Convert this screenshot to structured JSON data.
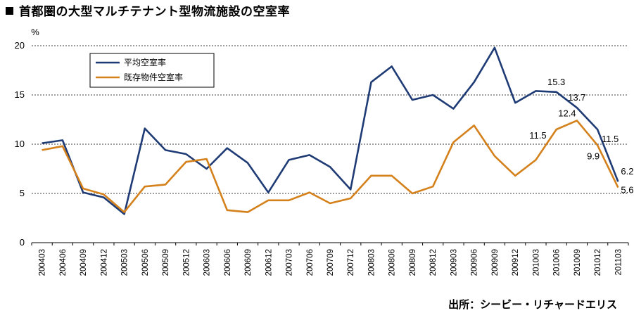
{
  "title": "首都圏の大型マルチテナント型物流施設の空室率",
  "source": "出所：シービー・リチャードエリス",
  "chart_data": {
    "type": "line",
    "ylabel": "%",
    "ylim": [
      0,
      20
    ],
    "yticks": [
      0,
      5,
      10,
      15,
      20
    ],
    "grid": true,
    "legend_position": "top-left",
    "categories": [
      "200403",
      "200406",
      "200409",
      "200412",
      "200503",
      "200506",
      "200509",
      "200512",
      "200603",
      "200606",
      "200609",
      "200612",
      "200703",
      "200706",
      "200709",
      "200712",
      "200803",
      "200806",
      "200809",
      "200812",
      "200903",
      "200906",
      "200909",
      "200912",
      "201003",
      "201006",
      "201009",
      "201012",
      "201103"
    ],
    "series": [
      {
        "name": "平均空室率",
        "color": "#1f3b75",
        "values": [
          10.1,
          10.4,
          5.1,
          4.6,
          2.9,
          11.6,
          9.4,
          9.0,
          7.5,
          9.6,
          8.1,
          5.1,
          8.4,
          8.9,
          7.7,
          5.4,
          16.3,
          17.9,
          14.5,
          15.0,
          13.6,
          16.3,
          19.8,
          14.2,
          15.4,
          15.3,
          13.7,
          11.5,
          6.2
        ]
      },
      {
        "name": "既存物件空室率",
        "color": "#d4811c",
        "values": [
          9.4,
          9.8,
          5.5,
          4.9,
          3.1,
          5.7,
          5.9,
          8.2,
          8.5,
          3.3,
          3.1,
          4.3,
          4.3,
          5.1,
          4.0,
          4.5,
          6.8,
          6.8,
          5.0,
          5.7,
          10.2,
          11.9,
          8.8,
          6.8,
          8.4,
          11.5,
          12.4,
          9.9,
          5.6
        ]
      }
    ],
    "data_labels": [
      {
        "series": 0,
        "index": 25,
        "text": "15.3"
      },
      {
        "series": 0,
        "index": 26,
        "text": "13.7"
      },
      {
        "series": 0,
        "index": 27,
        "text": "11.5"
      },
      {
        "series": 0,
        "index": 28,
        "text": "6.2"
      },
      {
        "series": 1,
        "index": 25,
        "text": "11.5"
      },
      {
        "series": 1,
        "index": 26,
        "text": "12.4"
      },
      {
        "series": 1,
        "index": 27,
        "text": "9.9"
      },
      {
        "series": 1,
        "index": 28,
        "text": "5.6"
      }
    ]
  }
}
